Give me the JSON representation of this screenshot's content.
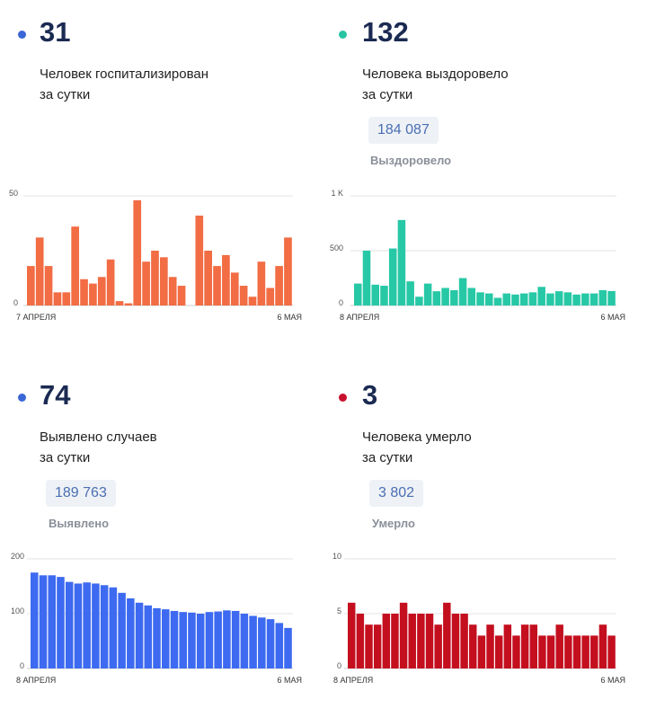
{
  "panels": [
    {
      "value": "31",
      "line1": "Человек госпитализирован",
      "line2": "за сутки",
      "total": null,
      "total_label": null,
      "dot_color": "#3a66d6",
      "bar_color": "#f26c44"
    },
    {
      "value": "132",
      "line1": "Человека выздоровело",
      "line2": "за сутки",
      "total": "184 087",
      "total_label": "Выздоровело",
      "dot_color": "#28c4a2",
      "bar_color": "#27c8a6"
    },
    {
      "value": "74",
      "line1": "Выявлено случаев",
      "line2": "за сутки",
      "total": "189 763",
      "total_label": "Выявлено",
      "dot_color": "#3a66d6",
      "bar_color": "#3d6af0"
    },
    {
      "value": "3",
      "line1": "Человека умерло",
      "line2": "за сутки",
      "total": "3 802",
      "total_label": "Умерло",
      "dot_color": "#c8102e",
      "bar_color": "#c40f1f"
    }
  ],
  "chart_data": [
    {
      "type": "bar",
      "x_start": "7 АПРЕЛЯ",
      "x_end": "6 МАЯ",
      "ylim": [
        0,
        50
      ],
      "y_ticks": [
        "0",
        "50"
      ],
      "values": [
        18,
        31,
        18,
        6,
        6,
        36,
        12,
        10,
        13,
        21,
        2,
        1,
        48,
        20,
        25,
        22,
        13,
        9,
        0,
        41,
        25,
        18,
        23,
        15,
        9,
        4,
        20,
        8,
        18,
        31
      ]
    },
    {
      "type": "bar",
      "x_start": "8 АПРЕЛЯ",
      "x_end": "6 МАЯ",
      "ylim": [
        0,
        1000
      ],
      "y_ticks": [
        "0",
        "500",
        "1 K"
      ],
      "values": [
        200,
        500,
        190,
        180,
        520,
        780,
        220,
        80,
        200,
        130,
        160,
        140,
        250,
        160,
        120,
        110,
        70,
        110,
        100,
        110,
        120,
        170,
        110,
        130,
        120,
        100,
        110,
        110,
        140,
        132
      ]
    },
    {
      "type": "bar",
      "x_start": "8 АПРЕЛЯ",
      "x_end": "6 МАЯ",
      "ylim": [
        0,
        200
      ],
      "y_ticks": [
        "0",
        "100",
        "200"
      ],
      "values": [
        175,
        170,
        170,
        167,
        158,
        155,
        157,
        155,
        152,
        148,
        138,
        128,
        120,
        115,
        110,
        108,
        105,
        103,
        102,
        100,
        103,
        104,
        106,
        105,
        100,
        96,
        93,
        90,
        83,
        74
      ]
    },
    {
      "type": "bar",
      "x_start": "8 АПРЕЛЯ",
      "x_end": "6 МАЯ",
      "ylim": [
        0,
        10
      ],
      "y_ticks": [
        "0",
        "5",
        "10"
      ],
      "values": [
        6,
        5,
        4,
        4,
        5,
        5,
        6,
        5,
        5,
        5,
        4,
        6,
        5,
        5,
        4,
        3,
        4,
        3,
        4,
        3,
        4,
        4,
        3,
        3,
        4,
        3,
        3,
        3,
        3,
        4,
        3
      ]
    }
  ]
}
